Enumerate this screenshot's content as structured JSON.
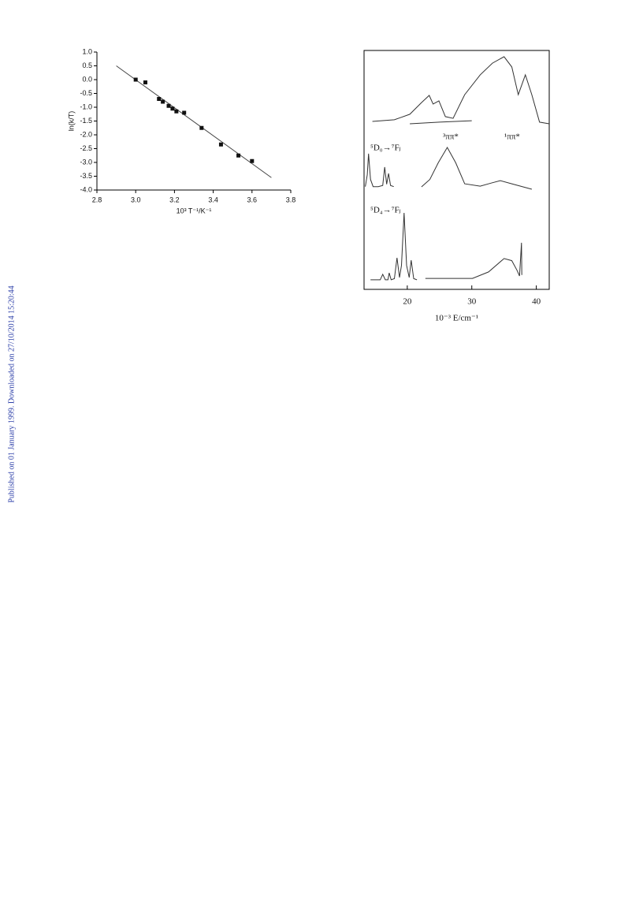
{
  "sidebar": "Published on 01 January 1999. Downloaded on 27/10/2014 15:20:44",
  "chart_data": [
    {
      "type": "scatter",
      "x_label": "10³ T⁻¹/K⁻¹",
      "y_label": "ln(k/T)",
      "x": [
        3.0,
        3.05,
        3.12,
        3.14,
        3.17,
        3.19,
        3.21,
        3.25,
        3.34,
        3.44,
        3.53,
        3.6
      ],
      "values": [
        0.0,
        -0.1,
        -0.7,
        -0.8,
        -0.95,
        -1.05,
        -1.15,
        -1.2,
        -1.75,
        -2.35,
        -2.75,
        -2.95
      ],
      "fit": {
        "x": [
          2.9,
          3.7
        ],
        "values": [
          0.5,
          -3.55
        ]
      },
      "color": "#111111",
      "xlim": [
        2.8,
        3.8
      ],
      "ylim": [
        -4,
        1
      ],
      "xticks": [
        2.8,
        {
          "value": 3,
          "label": "3.0"
        },
        3.2,
        3.4,
        3.6,
        3.8
      ],
      "yticks": [
        {
          "value": 1,
          "label": "1.0"
        },
        0.5,
        {
          "value": 0,
          "label": "0.0"
        },
        -0.5,
        {
          "value": -1,
          "label": "-1.0"
        },
        -1.5,
        {
          "value": -2,
          "label": "-2.0"
        },
        -2.5,
        {
          "value": -3,
          "label": "-3.0"
        },
        -3.5,
        {
          "value": -4,
          "label": "-4.0"
        }
      ]
    },
    {
      "type": "line",
      "x_label": "10⁻³ E/cm⁻¹",
      "annotations": [
        "⁵D₀→⁷Fⱼ",
        "³ππ*",
        "¹ππ*",
        "⁵D₄→⁷Fⱼ"
      ],
      "color": "#333333",
      "xlim": [
        13.3,
        42
      ],
      "ylim": [
        0,
        100
      ],
      "xticks": [
        20,
        30,
        40
      ],
      "series": [
        {
          "x": [
            14.6,
            18,
            20.4,
            22.2,
            23.4,
            24.0,
            24.9,
            25.9,
            27.1,
            28.9,
            31.3,
            33.2,
            35.0,
            36.2,
            37.2,
            38.3,
            39.3,
            40.5,
            42.0
          ],
          "values": [
            70.3,
            71,
            73.3,
            78.2,
            81.2,
            77.6,
            78.9,
            72.3,
            71.6,
            81.5,
            89.8,
            94.7,
            97.4,
            93.1,
            81.5,
            89.8,
            81.5,
            70.0,
            69.3
          ]
        },
        {
          "x": [
            20.4,
            25,
            30
          ],
          "values": [
            69.3,
            70,
            70.6
          ]
        },
        {
          "x": [
            13.5,
            13.8,
            14.0,
            14.3,
            14.7,
            15.5,
            16.2,
            16.5,
            16.8,
            17.1,
            17.4,
            17.9
          ],
          "values": [
            43,
            48,
            56.8,
            46,
            43,
            43,
            43.5,
            51.2,
            44,
            48.5,
            43.5,
            43
          ]
        },
        {
          "x": [
            22.2,
            23.5,
            24.8,
            26.2,
            27.5,
            28.9,
            31.3,
            33.0,
            34.4,
            36.2,
            39.3
          ],
          "values": [
            42.9,
            46,
            53,
            59.4,
            53,
            44.2,
            43.2,
            44.5,
            45.5,
            44.2,
            41.9
          ]
        },
        {
          "x": [
            14.3,
            15.8,
            16.2,
            16.6,
            17.0,
            17.2,
            17.5,
            18.0,
            18.4,
            18.8,
            19.1,
            19.5,
            19.9,
            20.3,
            20.6,
            21.0,
            21.5
          ],
          "values": [
            4,
            4,
            6.3,
            4,
            4,
            6.9,
            4,
            4.5,
            13.2,
            5,
            10,
            32,
            10,
            5,
            12.2,
            4.5,
            4
          ]
        },
        {
          "x": [
            22.8,
            30.1,
            32.6,
            35.0,
            36.2,
            37.0,
            37.4,
            37.7,
            37.75
          ],
          "values": [
            4.6,
            4.6,
            7.3,
            12.9,
            12,
            8,
            5.6,
            19.5,
            6
          ]
        }
      ]
    }
  ]
}
